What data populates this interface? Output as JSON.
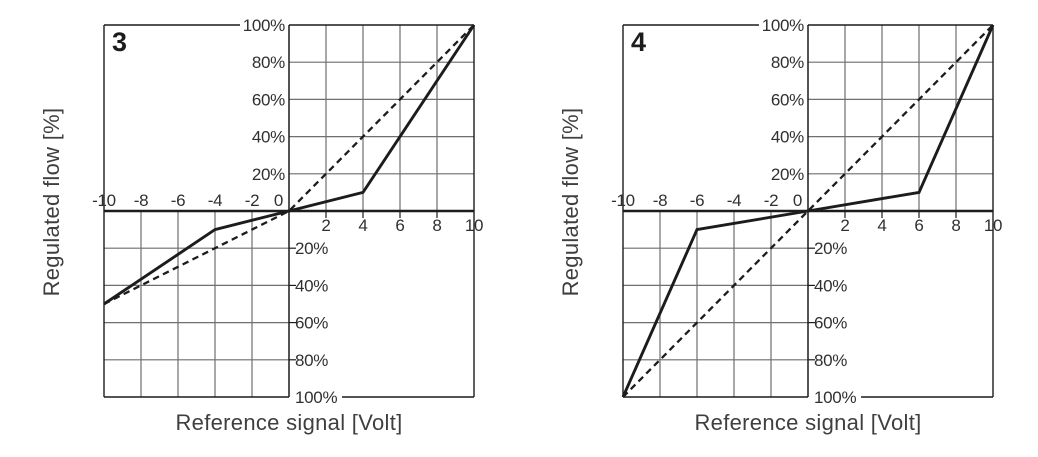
{
  "colors": {
    "background": "#ffffff",
    "curve": "#1c1c1c",
    "axis": "#1c1c1c",
    "border": "#1c1c1c",
    "grid_line": "#6f6f6f",
    "tick_text": "#303030",
    "title_text": "#3f3f3f",
    "panel_number": "#1c1c1c"
  },
  "chart_data": [
    {
      "type": "line",
      "panel_label": "3",
      "xlabel": "Reference signal [Volt]",
      "ylabel": "Regulated flow [%]",
      "xlim": [
        -10,
        10
      ],
      "ylim": [
        -100,
        100
      ],
      "x_tick_labels_negative": [
        "-10",
        "-8",
        "-6",
        "-4",
        "-2",
        "0"
      ],
      "x_tick_labels_positive": [
        "2",
        "4",
        "6",
        "8",
        "10"
      ],
      "y_tick_labels_upper": [
        "100%",
        "80%",
        "60%",
        "40%",
        "20%"
      ],
      "y_tick_labels_lower": [
        "20%",
        "40%",
        "60%",
        "80%",
        "100%"
      ],
      "grid": "on, upper-right and lower-left quadrants only",
      "legend_position": "none",
      "series": [
        {
          "name": "solid-characteristic",
          "style": "solid",
          "points": [
            [
              -10,
              -50
            ],
            [
              -4,
              -10
            ],
            [
              0,
              0
            ],
            [
              4,
              10
            ],
            [
              10,
              100
            ]
          ]
        },
        {
          "name": "dashed-linear-reference",
          "style": "dashed",
          "points": [
            [
              -10,
              -50
            ],
            [
              0,
              0
            ],
            [
              10,
              100
            ]
          ]
        }
      ]
    },
    {
      "type": "line",
      "panel_label": "4",
      "xlabel": "Reference signal [Volt]",
      "ylabel": "Regulated flow [%]",
      "xlim": [
        -10,
        10
      ],
      "ylim": [
        -100,
        100
      ],
      "x_tick_labels_negative": [
        "-10",
        "-8",
        "-6",
        "-4",
        "-2",
        "0"
      ],
      "x_tick_labels_positive": [
        "2",
        "4",
        "6",
        "8",
        "10"
      ],
      "y_tick_labels_upper": [
        "100%",
        "80%",
        "60%",
        "40%",
        "20%"
      ],
      "y_tick_labels_lower": [
        "20%",
        "40%",
        "60%",
        "80%",
        "100%"
      ],
      "grid": "on, upper-right and lower-left quadrants only",
      "legend_position": "none",
      "series": [
        {
          "name": "solid-characteristic",
          "style": "solid",
          "points": [
            [
              -10,
              -100
            ],
            [
              -6,
              -10
            ],
            [
              0,
              0
            ],
            [
              6,
              10
            ],
            [
              10,
              100
            ]
          ]
        },
        {
          "name": "dashed-linear-reference",
          "style": "dashed",
          "points": [
            [
              -10,
              -100
            ],
            [
              0,
              0
            ],
            [
              10,
              100
            ]
          ]
        }
      ]
    }
  ]
}
